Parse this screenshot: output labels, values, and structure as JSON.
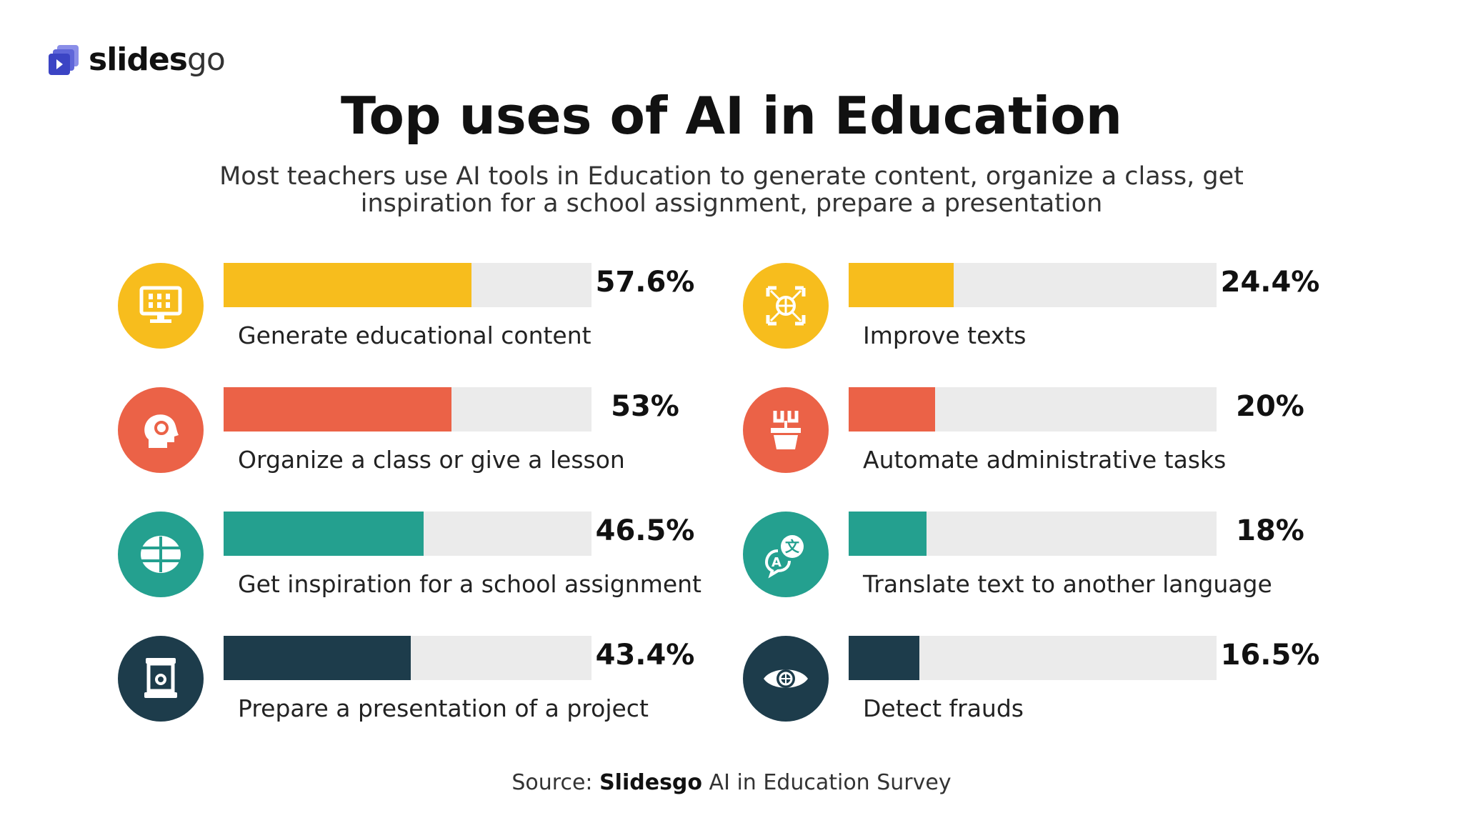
{
  "brand": {
    "logo_text": "slides",
    "logo_text_suffix": "go"
  },
  "colors": {
    "yellow": "#f7bd1d",
    "red": "#eb6247",
    "teal": "#24a08f",
    "navy": "#1d3c4b",
    "track": "#ebebeb"
  },
  "chart_data": {
    "type": "bar",
    "title": "Top uses of AI in Education",
    "subtitle": "Most teachers use AI tools in Education to generate content, organize a class, get inspiration for a school assignment, prepare a presentation",
    "unit": "%",
    "xlim": [
      0,
      100
    ],
    "items": [
      {
        "label": "Generate educational content",
        "value": 57.6,
        "display": "57.6%",
        "color": "yellow",
        "icon": "monitor-icon"
      },
      {
        "label": "Organize a class or give a lesson",
        "value": 53,
        "display": "53%",
        "color": "red",
        "icon": "head-gear-icon"
      },
      {
        "label": "Get inspiration for a school assignment",
        "value": 46.5,
        "display": "46.5%",
        "color": "teal",
        "icon": "brain-icon"
      },
      {
        "label": "Prepare a presentation of a project",
        "value": 43.4,
        "display": "43.4%",
        "color": "navy",
        "icon": "presentation-icon"
      },
      {
        "label": "Improve texts",
        "value": 24.4,
        "display": "24.4%",
        "color": "yellow",
        "icon": "network-icon"
      },
      {
        "label": "Automate administrative tasks",
        "value": 20,
        "display": "20%",
        "color": "red",
        "icon": "automation-icon"
      },
      {
        "label": "Translate text to another language",
        "value": 18,
        "display": "18%",
        "color": "teal",
        "icon": "translate-icon"
      },
      {
        "label": "Detect frauds",
        "value": 16.5,
        "display": "16.5%",
        "color": "navy",
        "icon": "eye-icon"
      }
    ]
  },
  "source": {
    "prefix": "Source: ",
    "name": "Slidesgo",
    "suffix": " AI in Education Survey"
  }
}
